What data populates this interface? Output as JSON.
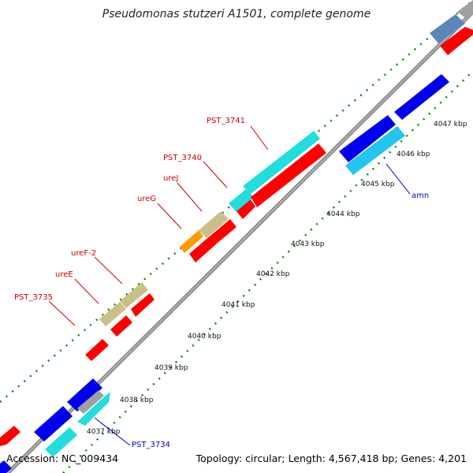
{
  "title": "Pseudomonas stutzeri A1501, complete genome",
  "footer": {
    "accession": "Accession: NC_009434",
    "summary": "Topology: circular; Length: 4,567,418 bp; Genes: 4,201"
  },
  "scale_labels": [
    "4037 kbp",
    "4038 kbp",
    "4039 kbp",
    "4040 kbp",
    "4041 kbp",
    "4042 kbp",
    "4043 kbp",
    "4044 kbp",
    "4045 kbp",
    "4046 kbp",
    "4047 kbp"
  ],
  "gene_labels": [
    {
      "name": "PST_3741",
      "color": "#cc0000"
    },
    {
      "name": "PST_3740",
      "color": "#cc0000"
    },
    {
      "name": "ureJ",
      "color": "#cc0000"
    },
    {
      "name": "ureG",
      "color": "#cc0000"
    },
    {
      "name": "ureF-2",
      "color": "#cc0000"
    },
    {
      "name": "ureE",
      "color": "#cc0000"
    },
    {
      "name": "PST_3735",
      "color": "#cc0000"
    },
    {
      "name": "amn",
      "color": "#0000cc"
    },
    {
      "name": "PST_3734",
      "color": "#0000cc"
    }
  ],
  "colors": {
    "backbone": "#888888",
    "tick_major": "#007700",
    "tick_minor": "#009900",
    "gene_red": "#ff0000",
    "gene_blue": "#0000ee",
    "gene_cyan": "#22dddd",
    "gene_lightblue": "#22c4f0",
    "gene_khaki": "#c8c088",
    "gene_orange": "#ff9900",
    "gene_gray": "#a0a0a0",
    "gene_steelblue": "#5a87b8"
  }
}
